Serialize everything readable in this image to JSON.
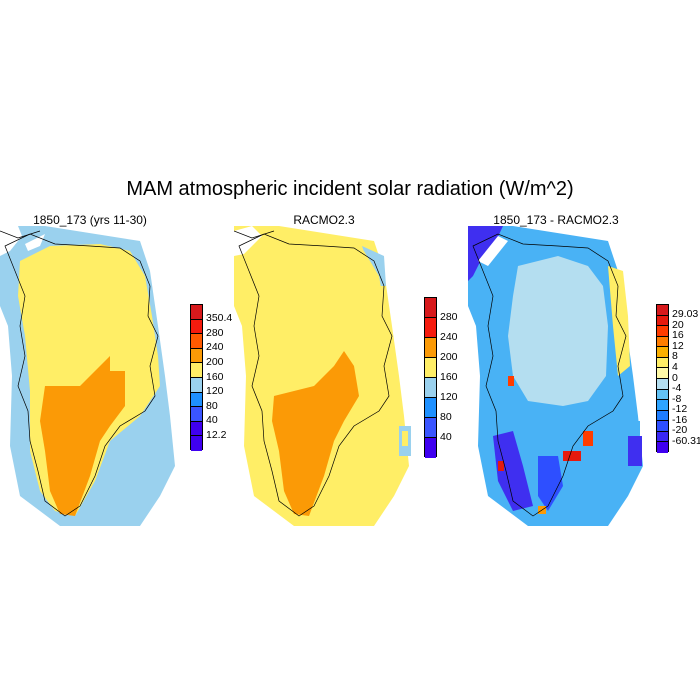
{
  "figure": {
    "title": "MAM atmospheric incident solar radiation (W/m^2)"
  },
  "panels": [
    {
      "title": "1850_173 (yrs 11-30)",
      "colorbar": {
        "labels": [
          "350.4",
          "280",
          "240",
          "200",
          "160",
          "120",
          "80",
          "40",
          "12.2"
        ],
        "colors": [
          "#d7191c",
          "#f51b0e",
          "#ff5a00",
          "#fb9a06",
          "#ffee66",
          "#9ad1ee",
          "#1e90ff",
          "#3a55ff",
          "#3f00f0",
          "#3f00f0"
        ]
      }
    },
    {
      "title": "RACMO2.3",
      "colorbar": {
        "labels": [
          "280",
          "240",
          "200",
          "160",
          "120",
          "80",
          "40"
        ],
        "colors": [
          "#d7191c",
          "#f51b0e",
          "#fb9a06",
          "#ffee66",
          "#9ad1ee",
          "#1e90ff",
          "#3a55ff",
          "#3f00f0"
        ]
      }
    },
    {
      "title": "1850_173 - RACMO2.3",
      "colorbar": {
        "labels": [
          "29.03",
          "20",
          "16",
          "12",
          "8",
          "4",
          "0",
          "-4",
          "-8",
          "-12",
          "-16",
          "-20",
          "-60.31"
        ],
        "colors": [
          "#d7191c",
          "#e61a0e",
          "#ff3c00",
          "#ff7d00",
          "#fbb000",
          "#ffee66",
          "#fffaa8",
          "#b4def0",
          "#63c2f5",
          "#2da4ff",
          "#1e7dff",
          "#2e4fff",
          "#3a28f5",
          "#3f00f0"
        ]
      }
    }
  ],
  "colors": {
    "yellow": "#ffee66",
    "orange": "#fb9a06",
    "light_blue": "#9ad1ee",
    "mid_blue": "#49b2f5",
    "dark_blue": "#3f2ff0",
    "red": "#e61a0e"
  }
}
